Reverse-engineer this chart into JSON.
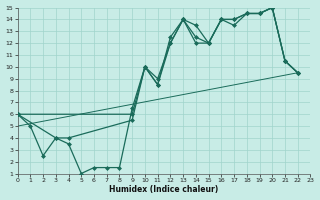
{
  "background_color": "#c8ece6",
  "grid_color": "#a0d4cc",
  "line_color": "#1a6b5a",
  "xlabel": "Humidex (Indice chaleur)",
  "ylim": [
    1,
    15
  ],
  "xlim": [
    0,
    23
  ],
  "yticks": [
    1,
    2,
    3,
    4,
    5,
    6,
    7,
    8,
    9,
    10,
    11,
    12,
    13,
    14,
    15
  ],
  "xticks": [
    0,
    1,
    2,
    3,
    4,
    5,
    6,
    7,
    8,
    9,
    10,
    11,
    12,
    13,
    14,
    15,
    16,
    17,
    18,
    19,
    20,
    21,
    22,
    23
  ],
  "line1_x": [
    0,
    1,
    2,
    3,
    4,
    5,
    6,
    7,
    8,
    9,
    10,
    11,
    12,
    13,
    14,
    15,
    16,
    17,
    18,
    19,
    20,
    21,
    22
  ],
  "line1_y": [
    6,
    5,
    2.5,
    4,
    3.5,
    1,
    1.5,
    1.5,
    1.5,
    6.5,
    10,
    8.5,
    12.5,
    14,
    13.5,
    12,
    14,
    14,
    14.5,
    14.5,
    15,
    10.5,
    9.5
  ],
  "line2_x": [
    0,
    3,
    4,
    9,
    10,
    11,
    12,
    13,
    14,
    15,
    16,
    17,
    18,
    19,
    20,
    21,
    22
  ],
  "line2_y": [
    6,
    4,
    4,
    5.5,
    10,
    8.5,
    12,
    14,
    12,
    12,
    14,
    13.5,
    14.5,
    14.5,
    15,
    10.5,
    9.5
  ],
  "line3_x": [
    0,
    9,
    10,
    11,
    12,
    13,
    14,
    15,
    16,
    17,
    18,
    19,
    20,
    21,
    22
  ],
  "line3_y": [
    6,
    6,
    10,
    9,
    12,
    14,
    12.5,
    12,
    14,
    14,
    14.5,
    14.5,
    15,
    10.5,
    9.5
  ],
  "trend_x": [
    0,
    22
  ],
  "trend_y": [
    5.0,
    9.5
  ]
}
